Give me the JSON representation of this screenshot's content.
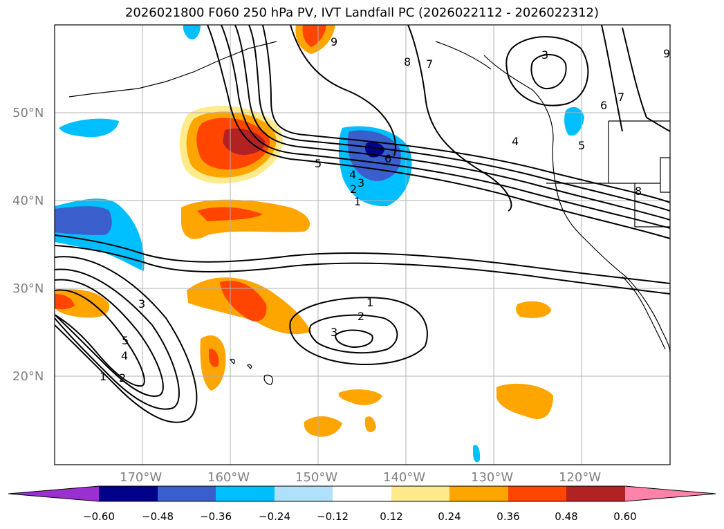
{
  "title": "2026021800 F060 250 hPa PV, IVT Landfall PC (2026022112 - 2026022312)",
  "lat_labels": [
    "50°N",
    "40°N",
    "30°N",
    "20°N"
  ],
  "lon_labels": [
    "170°W",
    "160°W",
    "150°W",
    "140°W",
    "130°W",
    "120°W"
  ],
  "colorbar": {
    "ticks": [
      "−0.60",
      "−0.48",
      "−0.36",
      "−0.24",
      "−0.12",
      "0.12",
      "0.24",
      "0.36",
      "0.48",
      "0.60"
    ],
    "colors": [
      "#9b30d0",
      "#00008b",
      "#3a5fcd",
      "#00bfff",
      "#afe1fa",
      "#ffffff",
      "#ffeb8c",
      "#ffa500",
      "#ff4500",
      "#b22222",
      "#ff82a9"
    ]
  },
  "contour_labels": {
    "north": [
      "9",
      "8",
      "7",
      "5",
      "4",
      "3",
      "2",
      "1",
      "6",
      "3",
      "4",
      "6",
      "7",
      "5",
      "8",
      "9"
    ],
    "south": [
      "1",
      "2",
      "3",
      "3",
      "4",
      "5",
      "1",
      "2"
    ]
  },
  "colors": {
    "contour": "#000000",
    "grid": "#b0b0b0",
    "land_outline": "#000000"
  }
}
